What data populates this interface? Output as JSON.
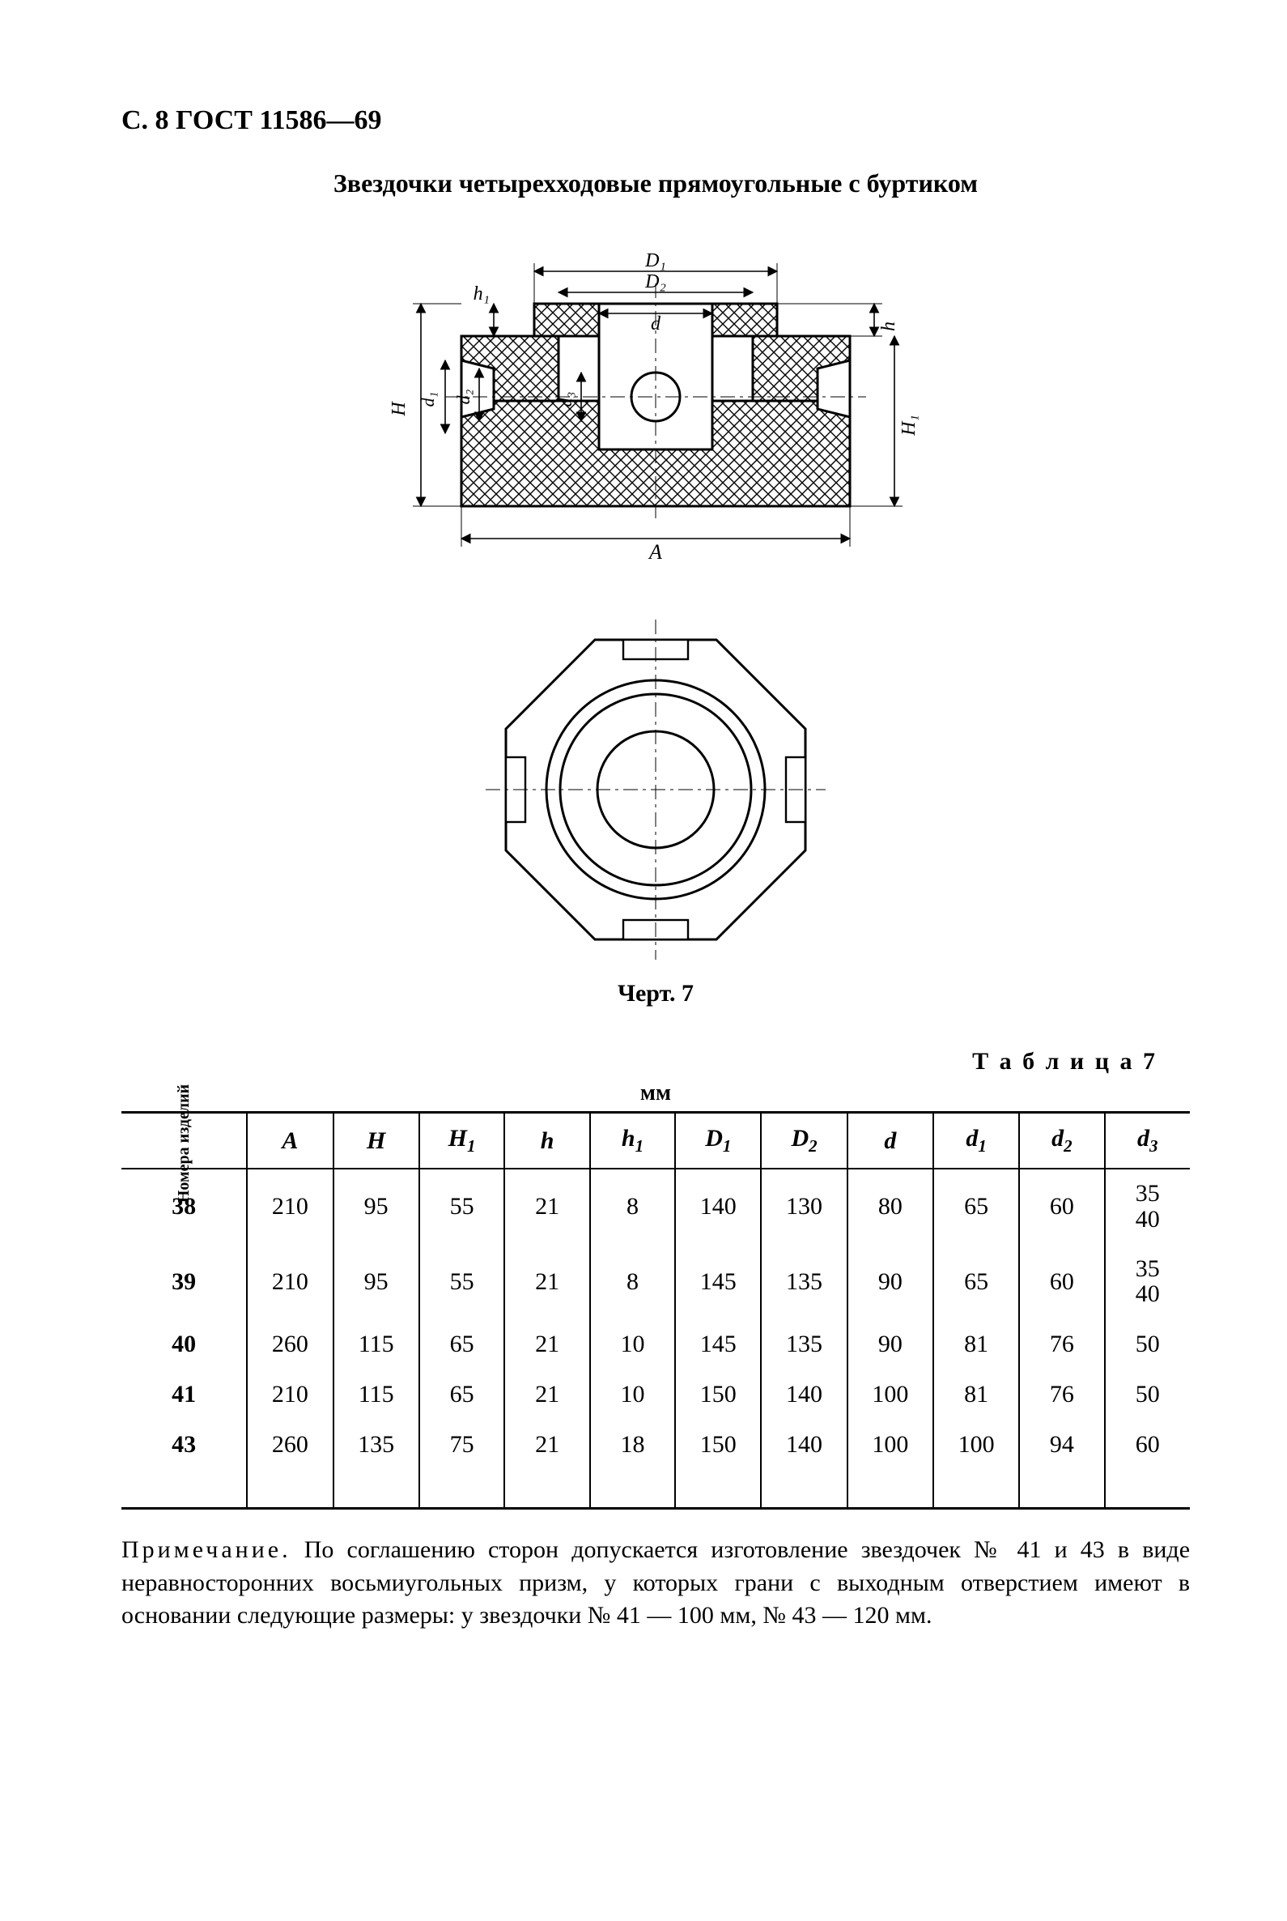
{
  "page_header": "С. 8 ГОСТ 11586—69",
  "title": "Звездочки четырехходовые прямоугольные с буртиком",
  "figure": {
    "caption": "Черт. 7",
    "labels": {
      "D1": "D₁",
      "D2": "D₂",
      "d": "d",
      "h1": "h₁",
      "h": "h",
      "d1": "d₁",
      "d2": "d₂",
      "d3": "d₃",
      "H": "H",
      "H1": "H₁",
      "A": "A"
    },
    "stroke": "#000000",
    "hatch": "#000000",
    "line_thin": 1.6,
    "line_thick": 3.2
  },
  "table": {
    "number_label": "Т а б л и ц а 7",
    "unit": "мм",
    "columns_first": "Номера\nизделий",
    "columns": [
      "A",
      "H",
      "H₁",
      "h",
      "h₁",
      "D₁",
      "D₂",
      "d",
      "d₁",
      "d₂",
      "d₃"
    ],
    "col_html": [
      "<i>A</i>",
      "<i>H</i>",
      "<i>H</i><span class='sub'>1</span>",
      "<i>h</i>",
      "<i>h</i><span class='sub'>1</span>",
      "<i>D</i><span class='sub'>1</span>",
      "<i>D</i><span class='sub'>2</span>",
      "<i>d</i>",
      "<i>d</i><span class='sub'>1</span>",
      "<i>d</i><span class='sub'>2</span>",
      "<i>d</i><span class='sub'>3</span>"
    ],
    "rows": [
      {
        "n": "38",
        "v": [
          "210",
          "95",
          "55",
          "21",
          "8",
          "140",
          "130",
          "80",
          "65",
          "60",
          "35\n40"
        ]
      },
      {
        "n": "39",
        "v": [
          "210",
          "95",
          "55",
          "21",
          "8",
          "145",
          "135",
          "90",
          "65",
          "60",
          "35\n40"
        ]
      },
      {
        "n": "40",
        "v": [
          "260",
          "115",
          "65",
          "21",
          "10",
          "145",
          "135",
          "90",
          "81",
          "76",
          "50"
        ]
      },
      {
        "n": "41",
        "v": [
          "210",
          "115",
          "65",
          "21",
          "10",
          "150",
          "140",
          "100",
          "81",
          "76",
          "50"
        ]
      },
      {
        "n": "43",
        "v": [
          "260",
          "135",
          "75",
          "21",
          "18",
          "150",
          "140",
          "100",
          "100",
          "94",
          "60"
        ]
      }
    ]
  },
  "note": {
    "lead": "Примечание.",
    "text": "По соглашению сторон допускается изготовление звездочек № 41 и 43 в виде неравносторонних восьмиугольных призм, у которых грани с выходным отверстием имеют в основании следующие размеры: у звездочки № 41 — 100 мм, № 43 — 120 мм."
  }
}
